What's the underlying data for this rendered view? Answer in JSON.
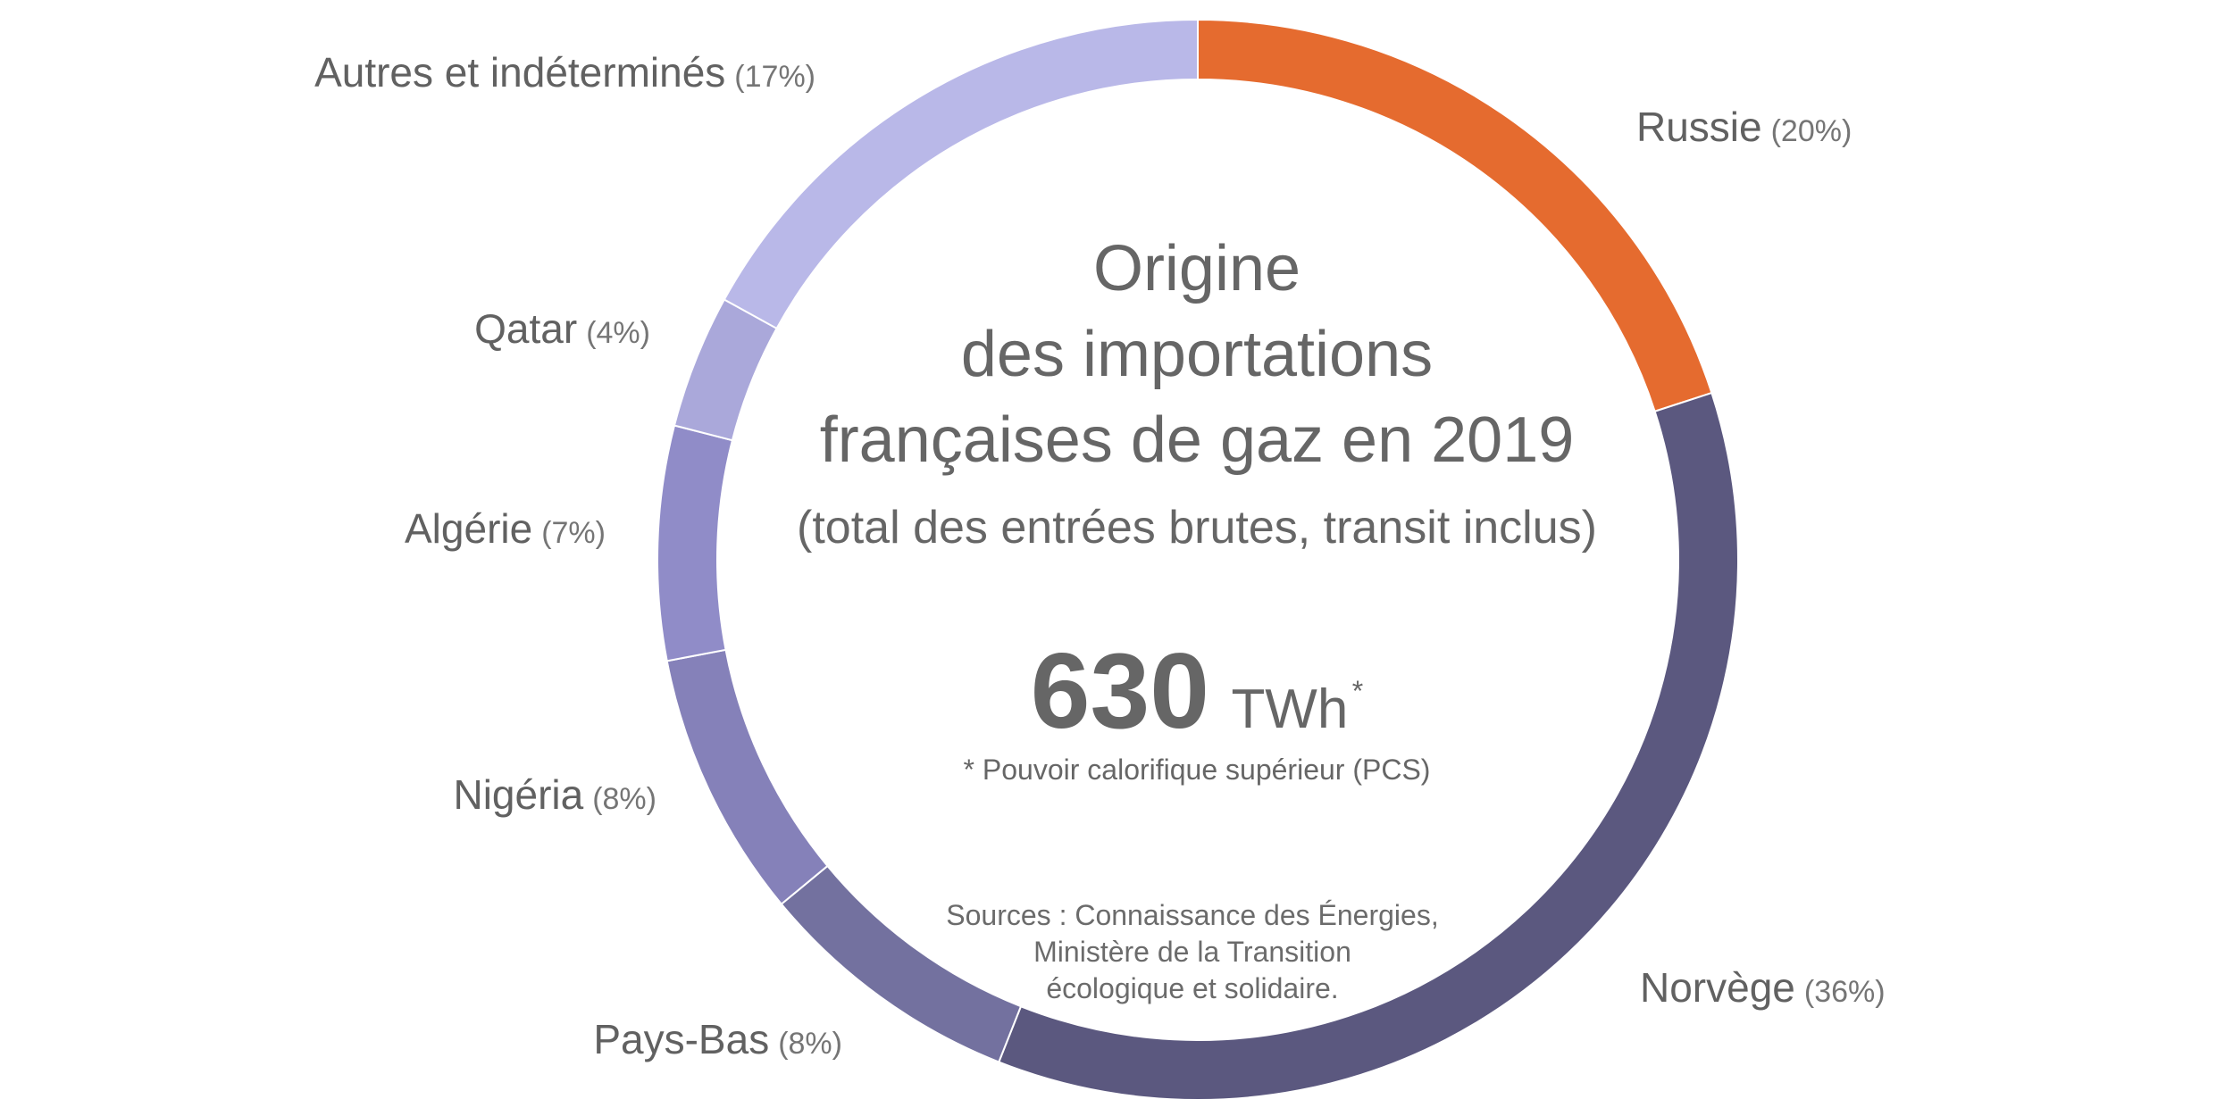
{
  "chart_data": {
    "type": "pie",
    "title": [
      "Origine",
      "des importations",
      "françaises de gaz en 2019"
    ],
    "subtitle": "(total des entrées brutes, transit inclus)",
    "total": {
      "value": "630",
      "unit": "TWh",
      "unit_mark": "*"
    },
    "footnote": "* Pouvoir calorifique supérieur (PCS)",
    "sources": [
      "Sources : Connaissance des Énergies,",
      "Ministère de la Transition",
      "écologique et solidaire."
    ],
    "slices": [
      {
        "label": "Russie",
        "pct_label": "(20%)",
        "value": 20,
        "color": "#E56B2F"
      },
      {
        "label": "Norvège",
        "pct_label": "(36%)",
        "value": 36,
        "color": "#5B587F"
      },
      {
        "label": "Pays-Bas",
        "pct_label": "(8%)",
        "value": 8,
        "color": "#73719F"
      },
      {
        "label": "Nigéria",
        "pct_label": "(8%)",
        "value": 8,
        "color": "#8581B9"
      },
      {
        "label": "Algérie",
        "pct_label": "(7%)",
        "value": 7,
        "color": "#908CC8"
      },
      {
        "label": "Qatar",
        "pct_label": "(4%)",
        "value": 4,
        "color": "#AAA8DA"
      },
      {
        "label": "Autres et indéterminés",
        "pct_label": "(17%)",
        "value": 17,
        "color": "#B9B8E8"
      }
    ]
  }
}
